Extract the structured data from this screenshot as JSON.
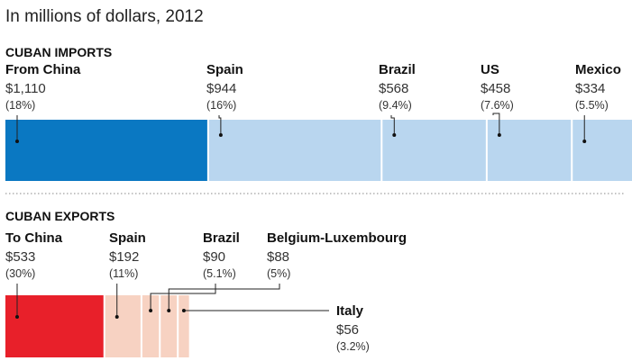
{
  "subtitle": "In millions of dollars, 2012",
  "chart_data": [
    {
      "type": "bar",
      "title": "CUBAN IMPORTS",
      "stacked_horizontal": true,
      "unit": "millions of dollars",
      "colors": {
        "highlight": "#0a78c2",
        "other": "#b9d6ef"
      },
      "series": [
        {
          "name": "From China",
          "amount_label": "$1,110",
          "share_label": "(18%)",
          "value": 1110,
          "share": 18
        },
        {
          "name": "Spain",
          "amount_label": "$944",
          "share_label": "(16%)",
          "value": 944,
          "share": 16
        },
        {
          "name": "Brazil",
          "amount_label": "$568",
          "share_label": "(9.4%)",
          "value": 568,
          "share": 9.4
        },
        {
          "name": "US",
          "amount_label": "$458",
          "share_label": "(7.6%)",
          "value": 458,
          "share": 7.6
        },
        {
          "name": "Mexico",
          "amount_label": "$334",
          "share_label": "(5.5%)",
          "value": 334,
          "share": 5.5
        }
      ]
    },
    {
      "type": "bar",
      "title": "CUBAN EXPORTS",
      "stacked_horizontal": true,
      "unit": "millions of dollars",
      "colors": {
        "highlight": "#e8202a",
        "other": "#f7d2c2"
      },
      "series": [
        {
          "name": "To China",
          "amount_label": "$533",
          "share_label": "(30%)",
          "value": 533,
          "share": 30
        },
        {
          "name": "Spain",
          "amount_label": "$192",
          "share_label": "(11%)",
          "value": 192,
          "share": 11
        },
        {
          "name": "Brazil",
          "amount_label": "$90",
          "share_label": "(5.1%)",
          "value": 90,
          "share": 5.1
        },
        {
          "name": "Belgium-Luxembourg",
          "amount_label": "$88",
          "share_label": "(5%)",
          "value": 88,
          "share": 5
        },
        {
          "name": "Italy",
          "amount_label": "$56",
          "share_label": "(3.2%)",
          "value": 56,
          "share": 3.2
        }
      ]
    }
  ]
}
